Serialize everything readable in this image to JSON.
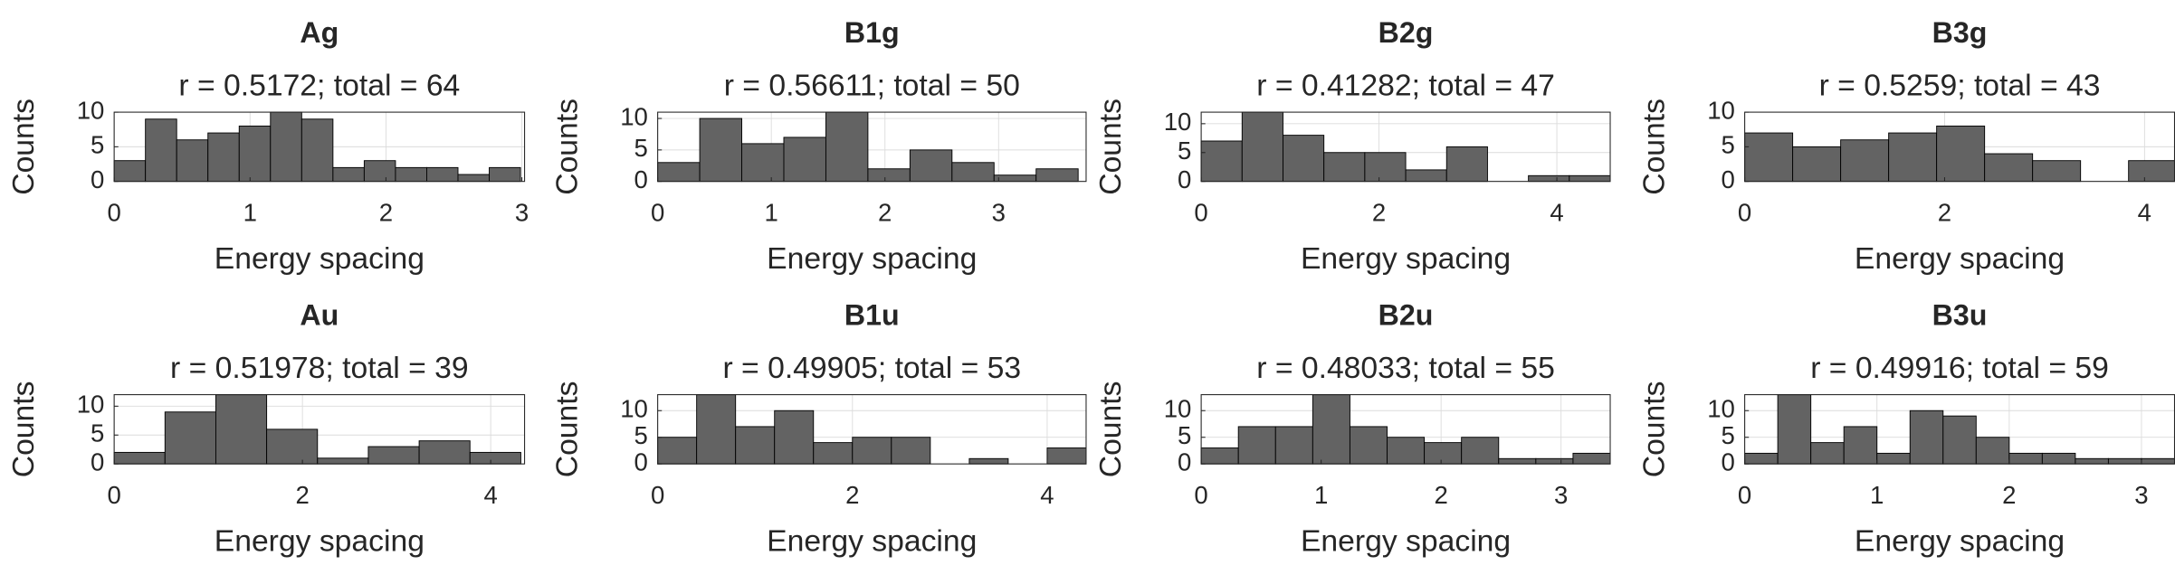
{
  "chart_data": [
    {
      "type": "histogram",
      "title": "Ag",
      "subtitle": "r = 0.5172; total = 64",
      "xlabel": "Energy spacing",
      "ylabel": "Counts",
      "bins": [
        0,
        0.23,
        0.46,
        0.69,
        0.92,
        1.15,
        1.38,
        1.61,
        1.84,
        2.07,
        2.3,
        2.53,
        2.76,
        2.99
      ],
      "values": [
        3,
        9,
        6,
        7,
        8,
        10,
        9,
        2,
        3,
        2,
        2,
        1,
        2
      ],
      "color": "#636363",
      "xlim": [
        0,
        3.02
      ],
      "ylim": [
        0,
        10
      ],
      "xticks": [
        0,
        1,
        2,
        3
      ],
      "yticks": [
        0,
        5,
        10
      ],
      "grid": true
    },
    {
      "type": "histogram",
      "title": "B1g",
      "subtitle": "r = 0.56611; total = 50",
      "xlabel": "Energy spacing",
      "ylabel": "Counts",
      "bins": [
        0,
        0.37,
        0.74,
        1.11,
        1.48,
        1.85,
        2.22,
        2.59,
        2.96,
        3.33,
        3.7
      ],
      "values": [
        3,
        10,
        6,
        7,
        11,
        2,
        5,
        3,
        1,
        2
      ],
      "color": "#636363",
      "xlim": [
        0,
        3.77
      ],
      "ylim": [
        0,
        11
      ],
      "xticks": [
        0,
        1,
        2,
        3
      ],
      "yticks": [
        0,
        5,
        10
      ],
      "grid": true
    },
    {
      "type": "histogram",
      "title": "B2g",
      "subtitle": "r = 0.41282; total = 47",
      "xlabel": "Energy spacing",
      "ylabel": "Counts",
      "bins": [
        0,
        0.46,
        0.92,
        1.38,
        1.84,
        2.3,
        2.76,
        3.22,
        3.68,
        4.14,
        4.6
      ],
      "values": [
        7,
        12,
        8,
        5,
        5,
        2,
        6,
        0,
        1,
        1
      ],
      "color": "#636363",
      "xlim": [
        0,
        4.6
      ],
      "ylim": [
        0,
        12
      ],
      "xticks": [
        0,
        2,
        4
      ],
      "yticks": [
        0,
        5,
        10
      ],
      "grid": true
    },
    {
      "type": "histogram",
      "title": "B3g",
      "subtitle": "r = 0.5259; total = 43",
      "xlabel": "Energy spacing",
      "ylabel": "Counts",
      "bins": [
        0,
        0.48,
        0.96,
        1.44,
        1.92,
        2.4,
        2.88,
        3.36,
        3.84,
        4.32
      ],
      "values": [
        7,
        5,
        6,
        7,
        8,
        4,
        3,
        0,
        3
      ],
      "color": "#636363",
      "xlim": [
        0,
        4.3
      ],
      "ylim": [
        0,
        10
      ],
      "xticks": [
        0,
        2,
        4
      ],
      "yticks": [
        0,
        5,
        10
      ],
      "grid": true
    },
    {
      "type": "histogram",
      "title": "Au",
      "subtitle": "r = 0.51978; total = 39",
      "xlabel": "Energy spacing",
      "ylabel": "Counts",
      "bins": [
        0,
        0.54,
        1.08,
        1.62,
        2.16,
        2.7,
        3.24,
        3.78,
        4.32
      ],
      "values": [
        2,
        9,
        12,
        6,
        1,
        3,
        4,
        2
      ],
      "color": "#636363",
      "xlim": [
        0,
        4.36
      ],
      "ylim": [
        0,
        12
      ],
      "xticks": [
        0,
        2,
        4
      ],
      "yticks": [
        0,
        5,
        10
      ],
      "grid": true
    },
    {
      "type": "histogram",
      "title": "B1u",
      "subtitle": "r = 0.49905; total = 53",
      "xlabel": "Energy spacing",
      "ylabel": "Counts",
      "bins": [
        0,
        0.4,
        0.8,
        1.2,
        1.6,
        2,
        2.4,
        2.8,
        3.2,
        3.6,
        4,
        4.4
      ],
      "values": [
        5,
        13,
        7,
        10,
        4,
        5,
        5,
        0,
        1,
        0,
        3
      ],
      "color": "#636363",
      "xlim": [
        0,
        4.4
      ],
      "ylim": [
        0,
        13
      ],
      "xticks": [
        0,
        2,
        4
      ],
      "yticks": [
        0,
        5,
        10
      ],
      "grid": true
    },
    {
      "type": "histogram",
      "title": "B2u",
      "subtitle": "r = 0.48033; total = 55",
      "xlabel": "Energy spacing",
      "ylabel": "Counts",
      "bins": [
        0,
        0.31,
        0.62,
        0.93,
        1.24,
        1.55,
        1.86,
        2.17,
        2.48,
        2.79,
        3.1,
        3.41
      ],
      "values": [
        3,
        7,
        7,
        13,
        7,
        5,
        4,
        5,
        1,
        1,
        2
      ],
      "color": "#636363",
      "xlim": [
        0,
        3.41
      ],
      "ylim": [
        0,
        13
      ],
      "xticks": [
        0,
        1,
        2,
        3
      ],
      "yticks": [
        0,
        5,
        10
      ],
      "grid": true
    },
    {
      "type": "histogram",
      "title": "B3u",
      "subtitle": "r = 0.49916; total = 59",
      "xlabel": "Energy spacing",
      "ylabel": "Counts",
      "bins": [
        0,
        0.25,
        0.5,
        0.75,
        1,
        1.25,
        1.5,
        1.75,
        2,
        2.25,
        2.5,
        2.75,
        3,
        3.25
      ],
      "values": [
        2,
        13,
        4,
        7,
        2,
        10,
        9,
        5,
        2,
        2,
        1,
        1,
        1
      ],
      "color": "#636363",
      "xlim": [
        0,
        3.25
      ],
      "ylim": [
        0,
        13
      ],
      "xticks": [
        0,
        1,
        2,
        3
      ],
      "yticks": [
        0,
        5,
        10
      ],
      "grid": true
    }
  ]
}
